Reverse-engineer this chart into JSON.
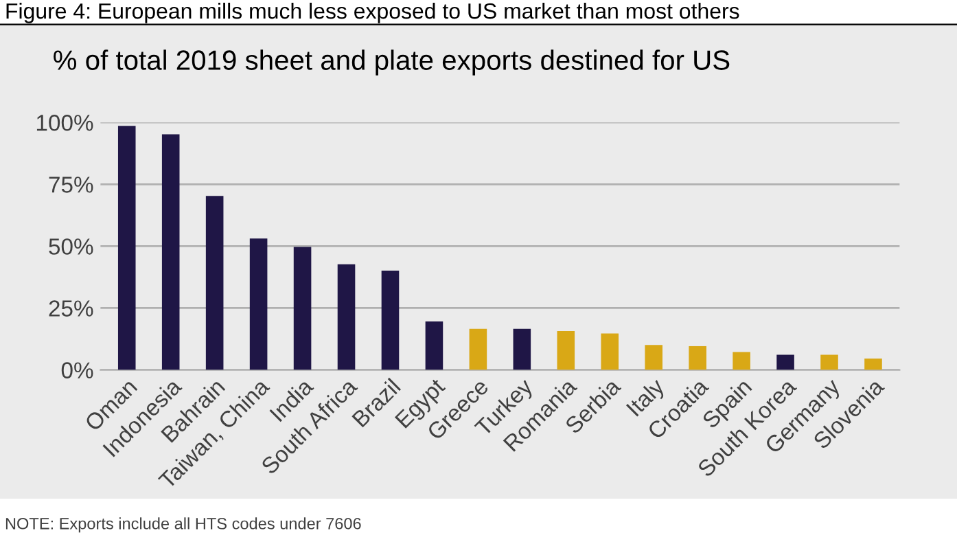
{
  "chart_data": {
    "type": "bar",
    "title": "Figure 4: European mills much less exposed to US market than most others",
    "subtitle": "% of total 2019 sheet and plate exports destined for US",
    "categories": [
      "Oman",
      "Indonesia",
      "Bahrain",
      "Taiwan, China",
      "India",
      "South Africa",
      "Brazil",
      "Egypt",
      "Greece",
      "Turkey",
      "Romania",
      "Serbia",
      "Italy",
      "Croatia",
      "Spain",
      "South Korea",
      "Germany",
      "Slovenia"
    ],
    "values": [
      98.6,
      95.2,
      70.3,
      53.1,
      49.7,
      42.7,
      40.1,
      19.6,
      16.6,
      16.6,
      15.7,
      14.7,
      10.1,
      9.6,
      7.2,
      6.1,
      6.1,
      4.6
    ],
    "colors": [
      "#1f1646",
      "#1f1646",
      "#1f1646",
      "#1f1646",
      "#1f1646",
      "#1f1646",
      "#1f1646",
      "#1f1646",
      "#d9a816",
      "#1f1646",
      "#d9a816",
      "#d9a816",
      "#d9a816",
      "#d9a816",
      "#d9a816",
      "#1f1646",
      "#d9a816",
      "#d9a816"
    ],
    "ylim": [
      0,
      100
    ],
    "yticks": [
      {
        "value": 0,
        "label": "0%"
      },
      {
        "value": 25,
        "label": "25%"
      },
      {
        "value": 50,
        "label": "50%"
      },
      {
        "value": 75,
        "label": "75%"
      },
      {
        "value": 100,
        "label": "100%"
      }
    ],
    "grid": "y",
    "annotations": [
      "NOTE: Exports include all HTS codes under 7606"
    ]
  }
}
